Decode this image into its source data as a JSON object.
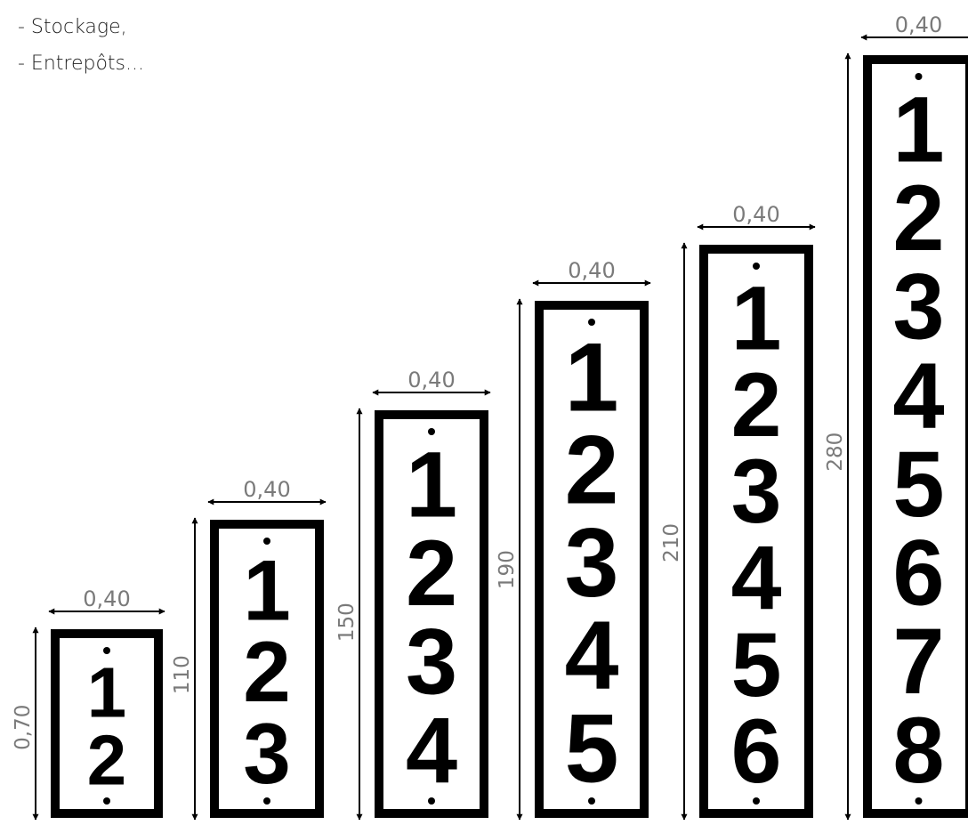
{
  "list_items": [
    "- Stockage,",
    "- Entrepôts..."
  ],
  "panels": [
    {
      "height_label": "0,70",
      "width_label": "0,40",
      "digits": [
        "1",
        "2"
      ]
    },
    {
      "height_label": "110",
      "width_label": "0,40",
      "digits": [
        "1",
        "2",
        "3"
      ]
    },
    {
      "height_label": "150",
      "width_label": "0,40",
      "digits": [
        "1",
        "2",
        "3",
        "4"
      ]
    },
    {
      "height_label": "190",
      "width_label": "0,40",
      "digits": [
        "1",
        "2",
        "3",
        "4",
        "5"
      ]
    },
    {
      "height_label": "210",
      "width_label": "0,40",
      "digits": [
        "1",
        "2",
        "3",
        "4",
        "5",
        "6"
      ]
    },
    {
      "height_label": "280",
      "width_label": "0,40",
      "digits": [
        "1",
        "2",
        "3",
        "4",
        "5",
        "6",
        "7",
        "8"
      ]
    }
  ],
  "colors": {
    "frame": "#000000",
    "dimension": "#7a7a7a",
    "background": "#ffffff"
  }
}
